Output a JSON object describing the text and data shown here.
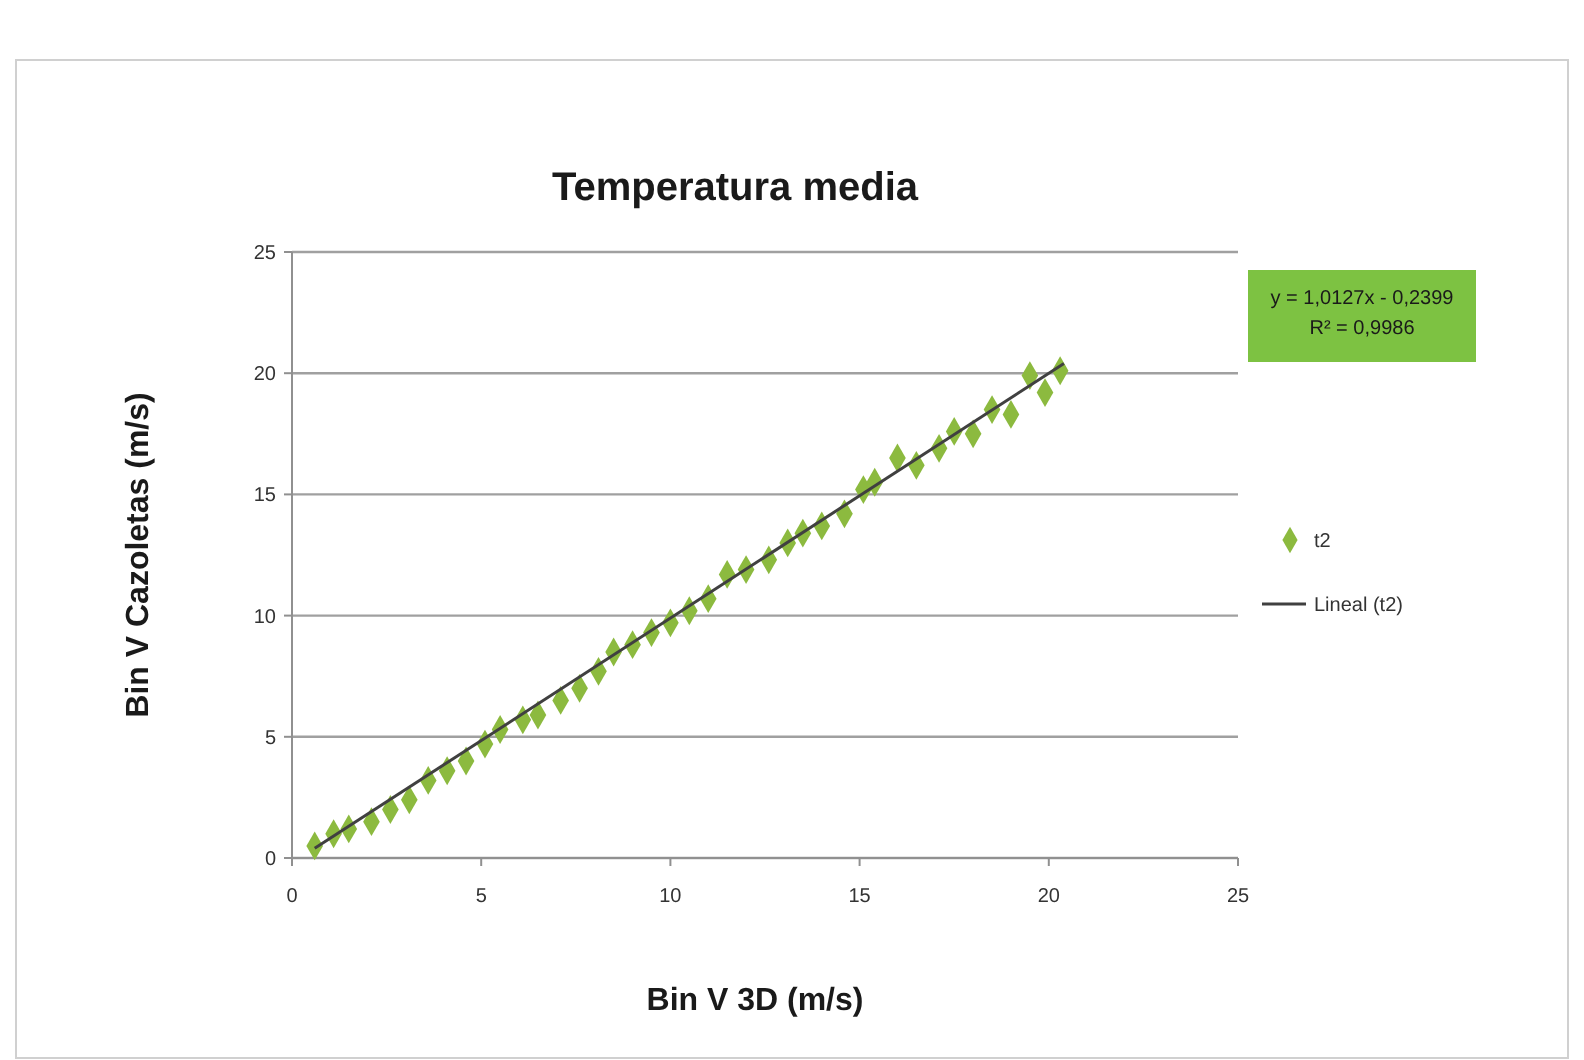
{
  "chart_data": {
    "type": "scatter",
    "title": "Temperatura media",
    "xlabel": "Bin V 3D (m/s)",
    "ylabel": "Bin V Cazoletas (m/s)",
    "xlim": [
      0,
      25
    ],
    "xticks": [
      0,
      5,
      10,
      15,
      20,
      25
    ],
    "ylim": [
      0,
      25
    ],
    "yticks": [
      0,
      5,
      10,
      15,
      20,
      25
    ],
    "grid": "y",
    "legend": "right",
    "marker": "diamond",
    "annotations": [
      "y = 1,0127x - 0,2399",
      "R² = 0,9986"
    ],
    "series": [
      {
        "name": "t2",
        "color": "#8cba3f",
        "x": [
          0.6,
          1.1,
          1.5,
          2.1,
          2.6,
          3.1,
          3.6,
          4.1,
          4.6,
          5.1,
          5.5,
          6.1,
          6.5,
          7.1,
          7.6,
          8.1,
          8.5,
          9,
          9.5,
          10,
          10.5,
          11,
          11.5,
          12,
          12.6,
          13.1,
          13.5,
          14,
          14.6,
          15.1,
          15.4,
          16,
          16.5,
          17.1,
          17.5,
          18,
          18.5,
          19,
          19.5,
          19.9,
          20.3
        ],
        "values": [
          0.5,
          1,
          1.2,
          1.5,
          2,
          2.4,
          3.2,
          3.6,
          4,
          4.7,
          5.3,
          5.7,
          5.9,
          6.5,
          7,
          7.7,
          8.5,
          8.8,
          9.3,
          9.7,
          10.2,
          10.7,
          11.7,
          11.9,
          12.3,
          13,
          13.4,
          13.7,
          14.2,
          15.2,
          15.5,
          16.5,
          16.2,
          16.9,
          17.6,
          17.5,
          18.5,
          18.3,
          19.9,
          19.2,
          20.1
        ]
      },
      {
        "name": "Lineal (t2)",
        "type": "line",
        "color": "#404040",
        "line_style": "solid",
        "marker": "none",
        "x": [
          0.6,
          20.4
        ],
        "values": [
          0.4,
          20.4
        ]
      }
    ]
  }
}
